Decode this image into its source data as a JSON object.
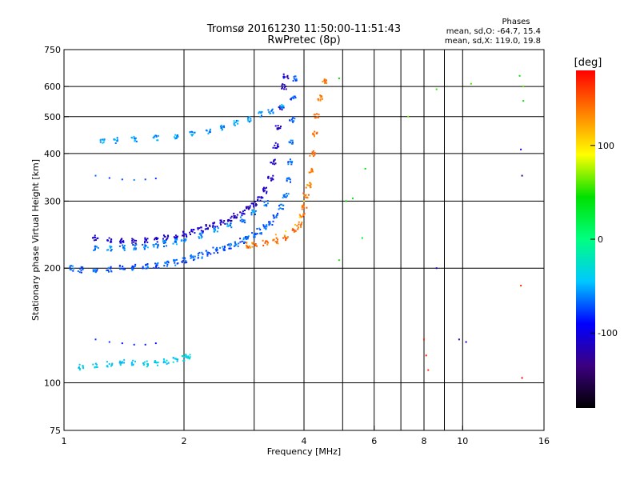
{
  "chart_data": {
    "type": "scatter",
    "title": "Tromsø 20161230 11:50:00-11:51:43",
    "subtitle": "RwPretec (8p)",
    "xlabel": "Frequency [MHz]",
    "ylabel": "Stationary phase Virtual Height [km]",
    "x_scale": "log",
    "y_scale": "log",
    "xlim": [
      1,
      16
    ],
    "ylim": [
      75,
      750
    ],
    "x_ticks": [
      1,
      2,
      4,
      6,
      8,
      10,
      16
    ],
    "y_ticks": [
      75,
      100,
      200,
      300,
      400,
      500,
      600,
      750
    ],
    "x_gridlines": [
      1,
      2,
      3,
      4,
      5,
      6,
      7,
      8,
      9,
      10,
      16
    ],
    "y_gridlines": [
      100,
      200,
      300,
      400,
      500,
      600
    ],
    "legend": {
      "title": "Phases",
      "lines": [
        "mean, sd,O: -64.7, 15.4",
        "mean, sd,X: 119.0, 19.8"
      ],
      "position": "top-right"
    },
    "colorbar": {
      "label": "[deg]",
      "min": -180,
      "max": 180,
      "ticks": [
        100,
        0,
        -100
      ],
      "colors": [
        "#000000",
        "#3c0080",
        "#0000ff",
        "#00c8ff",
        "#00ff80",
        "#00e000",
        "#ffff00",
        "#ff8000",
        "#ff0000"
      ]
    },
    "series": [
      {
        "points": [
          [
            1.05,
            200
          ],
          [
            1.1,
            198
          ],
          [
            1.2,
            198
          ],
          [
            1.3,
            199
          ],
          [
            1.4,
            200
          ],
          [
            1.5,
            201
          ],
          [
            1.6,
            202
          ],
          [
            1.7,
            203
          ],
          [
            1.8,
            205
          ],
          [
            1.9,
            207
          ],
          [
            2.0,
            210
          ],
          [
            2.1,
            213
          ],
          [
            2.2,
            216
          ],
          [
            2.3,
            219
          ],
          [
            2.4,
            223
          ],
          [
            2.5,
            226
          ],
          [
            2.6,
            229
          ],
          [
            2.7,
            232
          ],
          [
            2.8,
            236
          ],
          [
            2.9,
            240
          ],
          [
            3.0,
            245
          ],
          [
            3.1,
            250
          ],
          [
            3.2,
            256
          ],
          [
            3.3,
            264
          ],
          [
            3.4,
            275
          ],
          [
            3.5,
            290
          ],
          [
            3.6,
            310
          ],
          [
            3.65,
            340
          ],
          [
            3.7,
            380
          ],
          [
            3.72,
            430
          ],
          [
            3.74,
            490
          ],
          [
            3.76,
            560
          ],
          [
            3.78,
            630
          ]
        ],
        "phase": -70
      },
      {
        "points": [
          [
            1.2,
            240
          ],
          [
            1.3,
            238
          ],
          [
            1.4,
            236
          ],
          [
            1.5,
            235
          ],
          [
            1.6,
            236
          ],
          [
            1.7,
            238
          ],
          [
            1.8,
            240
          ],
          [
            1.9,
            243
          ],
          [
            2.0,
            246
          ],
          [
            2.1,
            249
          ],
          [
            2.2,
            252
          ],
          [
            2.3,
            256
          ],
          [
            2.4,
            260
          ],
          [
            2.5,
            264
          ],
          [
            2.6,
            269
          ],
          [
            2.7,
            274
          ],
          [
            2.8,
            280
          ],
          [
            2.9,
            287
          ],
          [
            3.0,
            295
          ],
          [
            3.1,
            305
          ],
          [
            3.2,
            320
          ],
          [
            3.3,
            345
          ],
          [
            3.35,
            380
          ],
          [
            3.4,
            420
          ],
          [
            3.45,
            470
          ],
          [
            3.5,
            530
          ],
          [
            3.55,
            600
          ],
          [
            3.6,
            640
          ]
        ],
        "phase": -110
      },
      {
        "points": [
          [
            1.2,
            225
          ],
          [
            1.3,
            225
          ],
          [
            1.4,
            226
          ],
          [
            1.5,
            227
          ],
          [
            1.6,
            228
          ],
          [
            1.7,
            230
          ],
          [
            1.8,
            232
          ],
          [
            1.9,
            235
          ],
          [
            2.0,
            238
          ],
          [
            2.2,
            244
          ],
          [
            2.4,
            251
          ],
          [
            2.6,
            259
          ],
          [
            2.8,
            268
          ],
          [
            3.0,
            280
          ],
          [
            3.2,
            296
          ]
        ],
        "phase": -60
      },
      {
        "points": [
          [
            1.25,
            430
          ],
          [
            1.35,
            433
          ],
          [
            1.5,
            437
          ],
          [
            1.7,
            440
          ],
          [
            1.9,
            444
          ],
          [
            2.1,
            450
          ],
          [
            2.3,
            458
          ],
          [
            2.5,
            468
          ],
          [
            2.7,
            480
          ],
          [
            2.9,
            493
          ],
          [
            3.1,
            506
          ],
          [
            3.3,
            518
          ],
          [
            3.5,
            530
          ]
        ],
        "phase": -55
      },
      {
        "points": [
          [
            1.2,
            350
          ],
          [
            1.3,
            345
          ],
          [
            1.4,
            342
          ],
          [
            1.5,
            341
          ],
          [
            1.6,
            342
          ],
          [
            1.7,
            344
          ]
        ],
        "phase": -65
      },
      {
        "points": [
          [
            1.2,
            130
          ],
          [
            1.3,
            128
          ],
          [
            1.4,
            127
          ],
          [
            1.5,
            126
          ],
          [
            1.6,
            126
          ],
          [
            1.7,
            127
          ]
        ],
        "phase": -80
      },
      {
        "points": [
          [
            1.1,
            110
          ],
          [
            1.2,
            111
          ],
          [
            1.3,
            112
          ],
          [
            1.4,
            113
          ],
          [
            1.5,
            113
          ],
          [
            1.6,
            112
          ],
          [
            1.7,
            113
          ],
          [
            1.8,
            114
          ],
          [
            1.9,
            115
          ],
          [
            2.0,
            116
          ],
          [
            2.05,
            117
          ]
        ],
        "phase": -40
      },
      {
        "points": [
          [
            2.9,
            230
          ],
          [
            3.0,
            231
          ],
          [
            3.2,
            233
          ],
          [
            3.4,
            236
          ],
          [
            3.6,
            241
          ],
          [
            3.8,
            250
          ],
          [
            3.9,
            260
          ],
          [
            3.95,
            275
          ],
          [
            4.0,
            290
          ],
          [
            4.05,
            310
          ],
          [
            4.1,
            330
          ],
          [
            4.15,
            360
          ],
          [
            4.2,
            400
          ],
          [
            4.25,
            450
          ],
          [
            4.3,
            500
          ],
          [
            4.4,
            560
          ],
          [
            4.5,
            620
          ]
        ],
        "phase": 140
      },
      {
        "points": [
          [
            3.4,
            245
          ],
          [
            3.6,
            250
          ],
          [
            3.8,
            260
          ],
          [
            3.9,
            272
          ],
          [
            4.0,
            300
          ],
          [
            4.1,
            330
          ]
        ],
        "phase": 110
      },
      {
        "points": [
          [
            7.3,
            500
          ],
          [
            8.6,
            590
          ],
          [
            10.5,
            610
          ],
          [
            13.9,
            640
          ],
          [
            14.2,
            600
          ],
          [
            14.2,
            550
          ]
        ],
        "phase": 60
      },
      {
        "points": [
          [
            8.6,
            200
          ],
          [
            9.8,
            130
          ],
          [
            10.2,
            128
          ],
          [
            14.0,
            410
          ],
          [
            14.1,
            350
          ]
        ],
        "phase": -110
      },
      {
        "points": [
          [
            14.0,
            180
          ],
          [
            14.1,
            103
          ],
          [
            8.0,
            130
          ],
          [
            8.1,
            118
          ],
          [
            8.2,
            108
          ]
        ],
        "phase": 170
      },
      {
        "points": [
          [
            4.9,
            630
          ],
          [
            4.9,
            210
          ],
          [
            5.1,
            300
          ],
          [
            5.3,
            305
          ],
          [
            5.7,
            365
          ],
          [
            5.6,
            240
          ]
        ],
        "phase": 40
      }
    ]
  }
}
